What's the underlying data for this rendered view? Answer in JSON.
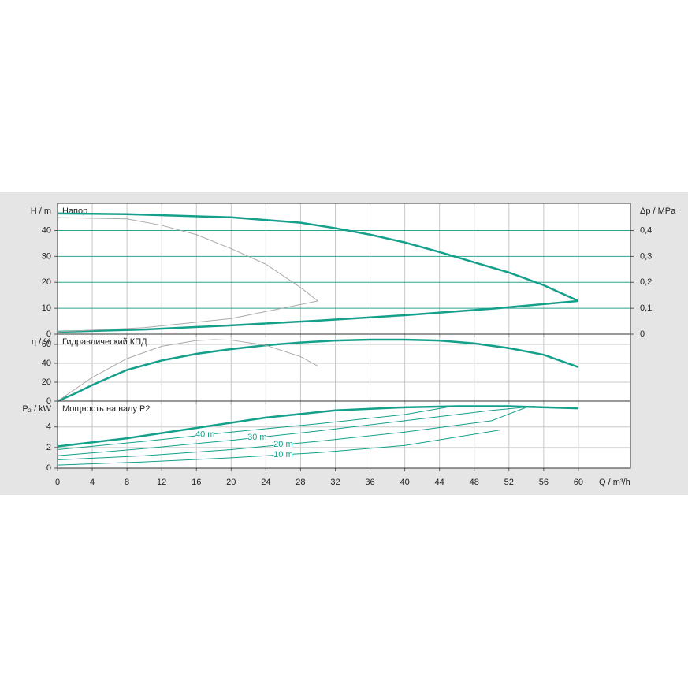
{
  "chart_data": [
    {
      "type": "line",
      "title": "Напор",
      "ylabel": "H / m",
      "y2label": "Δp / MPa",
      "xlim": [
        0,
        66
      ],
      "xticks": [
        0,
        4,
        8,
        12,
        16,
        20,
        24,
        28,
        32,
        36,
        40,
        44,
        48,
        52,
        56,
        60
      ],
      "ylim": [
        0,
        50.5
      ],
      "yticks": [
        0,
        10,
        20,
        30,
        40
      ],
      "y2lim": [
        0,
        0.505
      ],
      "y2ticks": [
        0,
        {
          "value": 0.1,
          "label": "0,1"
        },
        {
          "value": 0.2,
          "label": "0,2"
        },
        {
          "value": 0.3,
          "label": "0,3"
        },
        {
          "value": 0.4,
          "label": "0,4"
        }
      ],
      "grid": true,
      "grid_color": "#2aa58f",
      "series": [
        {
          "color": "#14a08a",
          "line_width": 2.5,
          "x": [
            0,
            8,
            20,
            28,
            32,
            36,
            40,
            44,
            48,
            52,
            56,
            60
          ],
          "values": [
            46.6,
            46.3,
            45.1,
            43,
            40.9,
            38.4,
            35.4,
            31.7,
            27.7,
            23.8,
            18.9,
            12.8
          ]
        },
        {
          "color": "#14a08a",
          "line_width": 2.5,
          "x": [
            0,
            10,
            20,
            30,
            40,
            50,
            60
          ],
          "values": [
            0.9,
            1.8,
            3.4,
            5.2,
            7.3,
            9.8,
            12.8
          ]
        },
        {
          "color": "#aaaaaa",
          "line_width": 1,
          "x": [
            0,
            8,
            12,
            16,
            20,
            24,
            28,
            30
          ],
          "values": [
            45,
            44.5,
            42,
            38.4,
            33,
            27,
            18,
            12.8
          ]
        },
        {
          "color": "#aaaaaa",
          "line_width": 1,
          "x": [
            0,
            10,
            20,
            30
          ],
          "values": [
            0.9,
            2.5,
            6,
            12.8
          ]
        }
      ]
    },
    {
      "type": "line",
      "title": "Гидравлический КПД",
      "ylabel": "η / %",
      "xlim": [
        0,
        66
      ],
      "xticks": [
        0,
        4,
        8,
        12,
        16,
        20,
        24,
        28,
        32,
        36,
        40,
        44,
        48,
        52,
        56,
        60
      ],
      "ylim": [
        0,
        70.8
      ],
      "yticks": [
        0,
        20,
        40,
        60
      ],
      "grid": true,
      "grid_color": "#c8c8c8",
      "series": [
        {
          "color": "#14a08a",
          "line_width": 2.5,
          "x": [
            0,
            2,
            4,
            8,
            12,
            16,
            20,
            24,
            28,
            32,
            36,
            40,
            44,
            48,
            52,
            56,
            60
          ],
          "values": [
            0,
            8,
            17,
            33,
            43,
            50,
            55,
            59,
            62,
            64,
            65,
            65,
            64,
            61,
            56,
            49,
            36
          ]
        },
        {
          "color": "#aaaaaa",
          "line_width": 1,
          "x": [
            0,
            4,
            8,
            12,
            16,
            18,
            20,
            24,
            28,
            30
          ],
          "values": [
            0,
            25,
            45,
            58,
            64,
            65,
            64.5,
            59,
            47,
            37
          ]
        }
      ]
    },
    {
      "type": "line",
      "title": "Мощность на валу P2",
      "ylabel": "P₂ / kW",
      "xlabel": "Q / m³/h",
      "xlim": [
        0,
        66
      ],
      "xticks": [
        0,
        4,
        8,
        12,
        16,
        20,
        24,
        28,
        32,
        36,
        40,
        44,
        48,
        52,
        56,
        60
      ],
      "ylim": [
        0,
        6.5
      ],
      "yticks": [
        0,
        2,
        4
      ],
      "grid": true,
      "grid_color": "#c8c8c8",
      "series": [
        {
          "color": "#14a08a",
          "line_width": 2.5,
          "x": [
            0,
            8,
            16,
            24,
            32,
            40,
            46,
            52,
            60
          ],
          "values": [
            2.1,
            2.9,
            3.9,
            4.9,
            5.6,
            5.9,
            6.0,
            6.0,
            5.8
          ]
        },
        {
          "name": "40 m",
          "color": "#14a08a",
          "line_width": 1,
          "x": [
            0,
            10,
            20,
            30,
            40,
            45.5
          ],
          "values": [
            1.8,
            2.6,
            3.5,
            4.3,
            5.2,
            6.0
          ]
        },
        {
          "name": "30 m",
          "color": "#14a08a",
          "line_width": 1,
          "x": [
            0,
            10,
            20,
            30,
            40,
            50,
            55
          ],
          "values": [
            1.2,
            1.9,
            2.7,
            3.6,
            4.6,
            5.6,
            6.0
          ]
        },
        {
          "name": "20 m",
          "color": "#14a08a",
          "line_width": 1,
          "x": [
            0,
            10,
            20,
            30,
            40,
            50,
            54
          ],
          "values": [
            0.8,
            1.2,
            1.8,
            2.6,
            3.5,
            4.6,
            5.9
          ]
        },
        {
          "name": "10 m",
          "color": "#14a08a",
          "line_width": 1,
          "x": [
            0,
            10,
            20,
            30,
            40,
            51
          ],
          "values": [
            0.3,
            0.6,
            1.0,
            1.5,
            2.2,
            3.7
          ]
        }
      ]
    }
  ]
}
